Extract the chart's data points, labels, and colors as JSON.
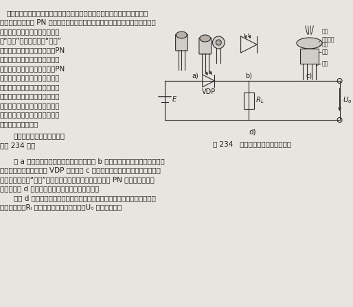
{
  "bg_color": "#e8e4df",
  "line_color": "#2a2a2a",
  "text_color": "#1a1a1a",
  "fig_width": 5.14,
  "fig_height": 4.48,
  "dpi": 100,
  "chinese_lines": [
    "光敏二极管是常用的光敏元件之一。它与普通的半导体二极管相比，相似之",
    "处是管心都是一个 PN 结，具有单向导电性能；不同之处是从外形上看时，光敏",
    "二极管管壳上有一个能射入光线",
    "的“窗口”。当光线透过“窗口”",
    "照射到光敏二极管管心上时，PN",
    "结反向漏电流增大，此时的漏电",
    "流称为光电流；而无光照时，PN",
    "结反向漏电流很小，此时的漏电",
    "流称为暗电流。我们就是利用光",
    "敏二极管的这一特点，演变出许",
    "许多多的经典光敏二极管控制电",
    "路，从本例开始的数例介绍光敏",
    "二极管的应用电路。"
  ],
  "line2_text": "光敏二极管的典型应用电路",
  "line3_text": "如图 234 所示",
  "bottom_lines": [
    "图 a 为常见的几种光敏二极管的外形；图 b 为光敏二极管的电路图形符号，",
    "其文字符号（即代号）用 VDP 表示；图 c 为光敏二极管结构剑面图，光线经有",
    "机玻璃透镜（即“窗口”）聚焦，照射到管心上，引起管心 PN 结的阻値变化，",
    "而后接到图 d 所示电路上，即会引起光电流变化。",
    "从图 d 所示典型应用电路中可以看出，光敏二极管工作时必须加上反向电",
    "压。在这里，Rₗ 为光敏二极管的负载电阀，U₀ 为输出电压。"
  ],
  "caption": "图 234   光敏二极管的典型应用电路",
  "label_a": "a)",
  "label_b": "b)",
  "label_c": "c)",
  "label_d": "d)",
  "label_vdp": "VDP",
  "label_e": "E",
  "label_rl": "R",
  "label_uo": "U"
}
